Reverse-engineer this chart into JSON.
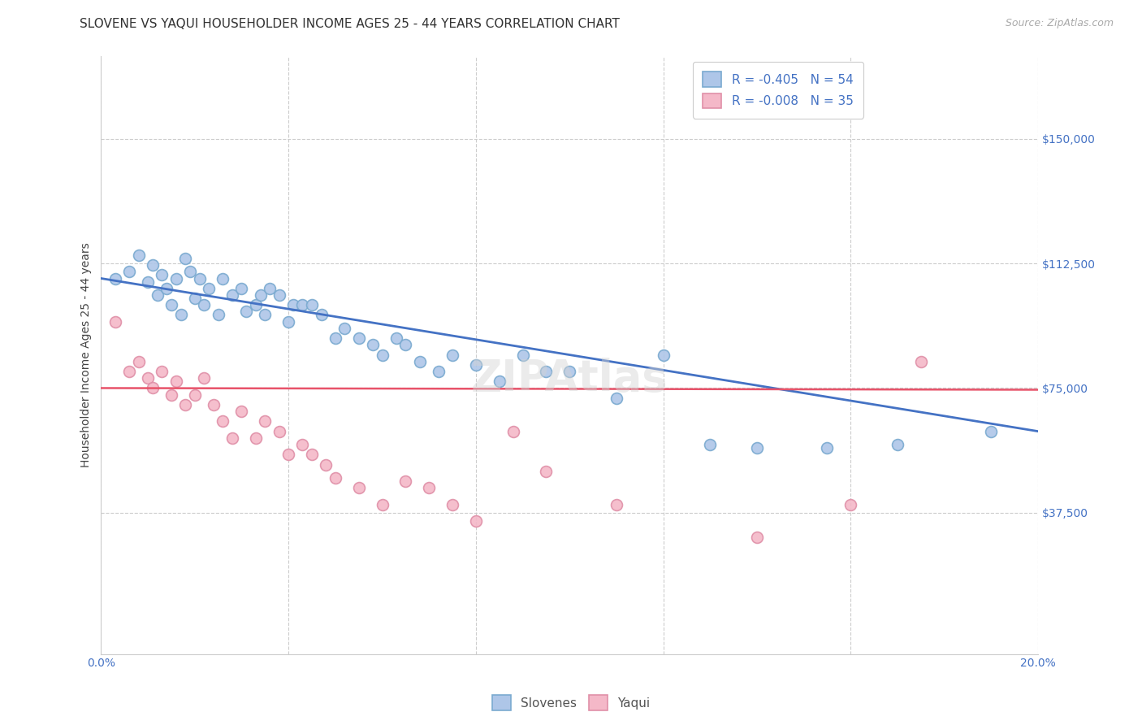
{
  "title": "SLOVENE VS YAQUI HOUSEHOLDER INCOME AGES 25 - 44 YEARS CORRELATION CHART",
  "source": "Source: ZipAtlas.com",
  "ylabel": "Householder Income Ages 25 - 44 years",
  "xlim": [
    0.0,
    0.2
  ],
  "ylim": [
    -5000,
    175000
  ],
  "xticks": [
    0.0,
    0.04,
    0.08,
    0.12,
    0.16,
    0.2
  ],
  "xticklabels": [
    "0.0%",
    "",
    "",
    "",
    "",
    "20.0%"
  ],
  "ytick_positions": [
    37500,
    75000,
    112500,
    150000
  ],
  "ytick_labels": [
    "$37,500",
    "$75,000",
    "$112,500",
    "$150,000"
  ],
  "grid_color": "#cccccc",
  "background_color": "#ffffff",
  "slovene_color": "#aec6e8",
  "yaqui_color": "#f4b8c8",
  "slovene_line_color": "#4472c4",
  "yaqui_line_color": "#e8536a",
  "legend_slovene_label": "R = -0.405   N = 54",
  "legend_yaqui_label": "R = -0.008   N = 35",
  "slovene_x": [
    0.003,
    0.006,
    0.008,
    0.01,
    0.011,
    0.012,
    0.013,
    0.014,
    0.015,
    0.016,
    0.017,
    0.018,
    0.019,
    0.02,
    0.021,
    0.022,
    0.023,
    0.025,
    0.026,
    0.028,
    0.03,
    0.031,
    0.033,
    0.034,
    0.035,
    0.036,
    0.038,
    0.04,
    0.041,
    0.043,
    0.045,
    0.047,
    0.05,
    0.052,
    0.055,
    0.058,
    0.06,
    0.063,
    0.065,
    0.068,
    0.072,
    0.075,
    0.08,
    0.085,
    0.09,
    0.095,
    0.1,
    0.11,
    0.12,
    0.13,
    0.14,
    0.155,
    0.17,
    0.19
  ],
  "slovene_y": [
    108000,
    110000,
    115000,
    107000,
    112000,
    103000,
    109000,
    105000,
    100000,
    108000,
    97000,
    114000,
    110000,
    102000,
    108000,
    100000,
    105000,
    97000,
    108000,
    103000,
    105000,
    98000,
    100000,
    103000,
    97000,
    105000,
    103000,
    95000,
    100000,
    100000,
    100000,
    97000,
    90000,
    93000,
    90000,
    88000,
    85000,
    90000,
    88000,
    83000,
    80000,
    85000,
    82000,
    77000,
    85000,
    80000,
    80000,
    72000,
    85000,
    58000,
    57000,
    57000,
    58000,
    62000
  ],
  "yaqui_x": [
    0.003,
    0.006,
    0.008,
    0.01,
    0.011,
    0.013,
    0.015,
    0.016,
    0.018,
    0.02,
    0.022,
    0.024,
    0.026,
    0.028,
    0.03,
    0.033,
    0.035,
    0.038,
    0.04,
    0.043,
    0.045,
    0.048,
    0.05,
    0.055,
    0.06,
    0.065,
    0.07,
    0.075,
    0.08,
    0.088,
    0.095,
    0.11,
    0.14,
    0.16,
    0.175
  ],
  "yaqui_y": [
    95000,
    80000,
    83000,
    78000,
    75000,
    80000,
    73000,
    77000,
    70000,
    73000,
    78000,
    70000,
    65000,
    60000,
    68000,
    60000,
    65000,
    62000,
    55000,
    58000,
    55000,
    52000,
    48000,
    45000,
    40000,
    47000,
    45000,
    40000,
    35000,
    62000,
    50000,
    40000,
    30000,
    40000,
    83000
  ],
  "slovene_trend_x0": 0.0,
  "slovene_trend_x1": 0.2,
  "slovene_trend_y0": 108000,
  "slovene_trend_y1": 62000,
  "yaqui_trend_y0": 75000,
  "yaqui_trend_y1": 74500,
  "title_fontsize": 11,
  "axis_label_fontsize": 10,
  "tick_fontsize": 10,
  "legend_fontsize": 11,
  "source_fontsize": 9,
  "marker_size": 100,
  "marker_edge_width": 1.2,
  "slovene_marker_edge": "#7aaad0",
  "yaqui_marker_edge": "#e090a8"
}
